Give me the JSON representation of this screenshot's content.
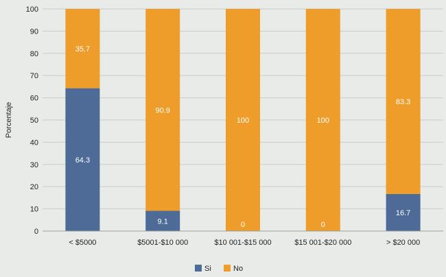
{
  "chart_data": {
    "type": "bar",
    "stacked": true,
    "ylabel": "Porcentaje",
    "xlabel": "",
    "ylim": [
      0,
      100
    ],
    "yticks": [
      0,
      10,
      20,
      30,
      40,
      50,
      60,
      70,
      80,
      90,
      100
    ],
    "grid": true,
    "legend_position": "bottom",
    "categories": [
      "< $5000",
      "$5001-$10 000",
      "$10 001-$15 000",
      "$15 001-$20 000",
      "> $20 000"
    ],
    "series": [
      {
        "name": "Si",
        "color": "#4e6b97",
        "values": [
          64.3,
          9.1,
          0,
          0,
          16.7
        ],
        "labels": [
          "64.3",
          "9.1",
          "0",
          "0",
          "16.7"
        ]
      },
      {
        "name": "No",
        "color": "#ee9d2a",
        "values": [
          35.7,
          90.9,
          100,
          100,
          83.3
        ],
        "labels": [
          "35.7",
          "90.9",
          "100",
          "100",
          "83.3"
        ]
      }
    ]
  }
}
